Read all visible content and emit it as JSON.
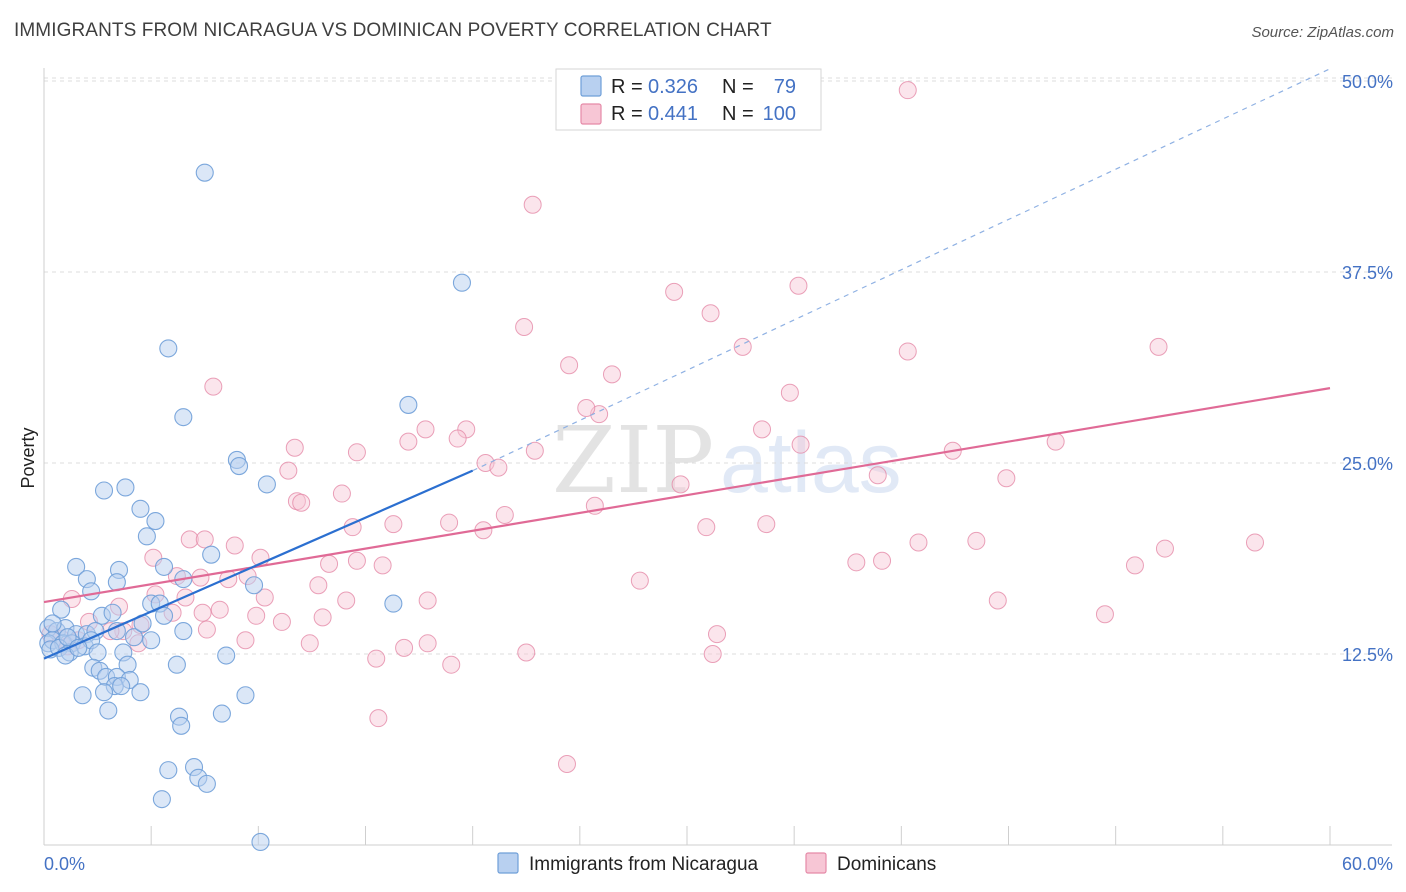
{
  "title": "IMMIGRANTS FROM NICARAGUA VS DOMINICAN POVERTY CORRELATION CHART",
  "source": "Source: ZipAtlas.com",
  "watermark": {
    "zip": "ZIP",
    "atlas": "atlas"
  },
  "colors": {
    "blue_fill": "#b8d0f0",
    "blue_stroke": "#6f9fd8",
    "blue_line": "#2b6fd0",
    "pink_fill": "#f7c6d5",
    "pink_stroke": "#e58aa8",
    "pink_line": "#e06a96",
    "tick_text": "#4472c4"
  },
  "legend_box": {
    "rows": [
      {
        "r_label": "R =",
        "r_value": "0.326",
        "n_label": "N =",
        "n_value": "79"
      },
      {
        "r_label": "R =",
        "r_value": "0.441",
        "n_label": "N =",
        "n_value": "100"
      }
    ]
  },
  "bottom_legend": [
    "Immigrants from Nicaragua",
    "Dominicans"
  ],
  "chart_data": {
    "type": "scatter",
    "title": "IMMIGRANTS FROM NICARAGUA VS DOMINICAN POVERTY CORRELATION CHART",
    "xlabel": "",
    "ylabel": "Poverty",
    "xlim": [
      0,
      60
    ],
    "ylim": [
      0,
      50
    ],
    "x_tick_labels": [
      "0.0%",
      "60.0%"
    ],
    "y_ticks": [
      12.5,
      25.0,
      37.5,
      50.0
    ],
    "y_tick_labels": [
      "12.5%",
      "25.0%",
      "37.5%",
      "50.0%"
    ],
    "grid": true,
    "legend_position": "top-center",
    "series": [
      {
        "name": "Immigrants from Nicaragua",
        "R": 0.326,
        "N": 79,
        "trend": {
          "x0": 0.0,
          "y0": 12.2,
          "x1": 20.0,
          "y1": 24.5,
          "dashed_to_x": 60.0,
          "dashed_to_y": 50.8
        },
        "points": [
          [
            7.5,
            44.0
          ],
          [
            19.5,
            36.8
          ],
          [
            5.8,
            32.5
          ],
          [
            6.5,
            28.0
          ],
          [
            17.0,
            28.8
          ],
          [
            9.0,
            25.2
          ],
          [
            9.1,
            24.8
          ],
          [
            10.4,
            23.6
          ],
          [
            2.8,
            23.2
          ],
          [
            3.8,
            23.4
          ],
          [
            4.5,
            22.0
          ],
          [
            5.2,
            21.2
          ],
          [
            4.8,
            20.2
          ],
          [
            7.8,
            19.0
          ],
          [
            1.5,
            18.2
          ],
          [
            3.5,
            18.0
          ],
          [
            5.6,
            18.2
          ],
          [
            2.0,
            17.4
          ],
          [
            3.4,
            17.2
          ],
          [
            6.5,
            17.4
          ],
          [
            9.8,
            17.0
          ],
          [
            2.2,
            16.6
          ],
          [
            5.0,
            15.8
          ],
          [
            5.4,
            15.8
          ],
          [
            16.3,
            15.8
          ],
          [
            0.8,
            15.4
          ],
          [
            2.7,
            15.0
          ],
          [
            3.2,
            15.2
          ],
          [
            5.6,
            15.0
          ],
          [
            0.2,
            14.2
          ],
          [
            0.6,
            14.0
          ],
          [
            1.0,
            14.2
          ],
          [
            1.5,
            13.8
          ],
          [
            2.0,
            13.8
          ],
          [
            2.4,
            14.0
          ],
          [
            3.4,
            14.0
          ],
          [
            6.5,
            14.0
          ],
          [
            0.2,
            13.2
          ],
          [
            0.4,
            13.4
          ],
          [
            0.9,
            13.2
          ],
          [
            1.3,
            13.2
          ],
          [
            1.9,
            13.0
          ],
          [
            2.2,
            13.4
          ],
          [
            4.2,
            13.6
          ],
          [
            5.0,
            13.4
          ],
          [
            0.3,
            12.8
          ],
          [
            0.7,
            12.9
          ],
          [
            1.2,
            12.6
          ],
          [
            1.0,
            12.4
          ],
          [
            2.5,
            12.6
          ],
          [
            3.7,
            12.6
          ],
          [
            8.5,
            12.4
          ],
          [
            6.2,
            11.8
          ],
          [
            2.3,
            11.6
          ],
          [
            2.6,
            11.4
          ],
          [
            3.9,
            11.8
          ],
          [
            2.9,
            11.0
          ],
          [
            3.4,
            11.0
          ],
          [
            4.0,
            10.8
          ],
          [
            3.3,
            10.4
          ],
          [
            3.6,
            10.4
          ],
          [
            1.8,
            9.8
          ],
          [
            2.8,
            10.0
          ],
          [
            4.5,
            10.0
          ],
          [
            9.4,
            9.8
          ],
          [
            3.0,
            8.8
          ],
          [
            6.3,
            8.4
          ],
          [
            8.3,
            8.6
          ],
          [
            6.4,
            7.8
          ],
          [
            5.8,
            4.9
          ],
          [
            7.0,
            5.1
          ],
          [
            7.2,
            4.4
          ],
          [
            7.6,
            4.0
          ],
          [
            5.5,
            3.0
          ],
          [
            10.1,
            0.2
          ],
          [
            0.4,
            14.5
          ],
          [
            1.1,
            13.6
          ],
          [
            1.6,
            12.9
          ],
          [
            4.6,
            14.5
          ]
        ]
      },
      {
        "name": "Dominicans",
        "R": 0.441,
        "N": 100,
        "trend": {
          "x0": 0.0,
          "y0": 15.9,
          "x1": 60.0,
          "y1": 29.9
        },
        "points": [
          [
            40.3,
            49.4
          ],
          [
            22.8,
            41.9
          ],
          [
            29.4,
            36.2
          ],
          [
            35.2,
            36.6
          ],
          [
            22.4,
            33.9
          ],
          [
            31.1,
            34.8
          ],
          [
            32.6,
            32.6
          ],
          [
            40.3,
            32.3
          ],
          [
            52.0,
            32.6
          ],
          [
            24.5,
            31.4
          ],
          [
            26.5,
            30.8
          ],
          [
            7.9,
            30.0
          ],
          [
            34.8,
            29.6
          ],
          [
            25.9,
            28.2
          ],
          [
            25.3,
            28.6
          ],
          [
            17.8,
            27.2
          ],
          [
            19.7,
            27.2
          ],
          [
            33.5,
            27.2
          ],
          [
            17.0,
            26.4
          ],
          [
            19.3,
            26.6
          ],
          [
            11.7,
            26.0
          ],
          [
            14.6,
            25.7
          ],
          [
            22.9,
            25.8
          ],
          [
            35.3,
            26.2
          ],
          [
            42.4,
            25.8
          ],
          [
            47.2,
            26.4
          ],
          [
            20.6,
            25.0
          ],
          [
            11.4,
            24.5
          ],
          [
            21.2,
            24.7
          ],
          [
            29.7,
            23.6
          ],
          [
            38.9,
            24.2
          ],
          [
            44.9,
            24.0
          ],
          [
            13.9,
            23.0
          ],
          [
            11.8,
            22.5
          ],
          [
            12.0,
            22.4
          ],
          [
            21.5,
            21.6
          ],
          [
            25.7,
            22.2
          ],
          [
            14.4,
            20.8
          ],
          [
            16.3,
            21.0
          ],
          [
            18.9,
            21.1
          ],
          [
            20.5,
            20.6
          ],
          [
            30.9,
            20.8
          ],
          [
            33.7,
            21.0
          ],
          [
            6.8,
            20.0
          ],
          [
            7.5,
            20.0
          ],
          [
            8.9,
            19.6
          ],
          [
            40.8,
            19.8
          ],
          [
            43.5,
            19.9
          ],
          [
            5.1,
            18.8
          ],
          [
            10.1,
            18.8
          ],
          [
            13.3,
            18.4
          ],
          [
            14.6,
            18.6
          ],
          [
            15.8,
            18.3
          ],
          [
            37.9,
            18.5
          ],
          [
            39.1,
            18.6
          ],
          [
            52.3,
            19.4
          ],
          [
            56.5,
            19.8
          ],
          [
            50.9,
            18.3
          ],
          [
            6.2,
            17.6
          ],
          [
            7.3,
            17.5
          ],
          [
            8.6,
            17.4
          ],
          [
            9.5,
            17.6
          ],
          [
            12.8,
            17.0
          ],
          [
            27.8,
            17.3
          ],
          [
            1.3,
            16.1
          ],
          [
            5.2,
            16.4
          ],
          [
            6.6,
            16.2
          ],
          [
            10.3,
            16.2
          ],
          [
            14.1,
            16.0
          ],
          [
            17.9,
            16.0
          ],
          [
            44.5,
            16.0
          ],
          [
            3.5,
            15.6
          ],
          [
            6.0,
            15.2
          ],
          [
            7.4,
            15.2
          ],
          [
            8.2,
            15.4
          ],
          [
            9.9,
            15.0
          ],
          [
            11.1,
            14.6
          ],
          [
            13.0,
            14.9
          ],
          [
            49.5,
            15.1
          ],
          [
            2.1,
            14.6
          ],
          [
            3.7,
            14.0
          ],
          [
            4.5,
            14.4
          ],
          [
            7.6,
            14.1
          ],
          [
            31.4,
            13.8
          ],
          [
            1.6,
            13.4
          ],
          [
            4.4,
            13.2
          ],
          [
            9.4,
            13.4
          ],
          [
            12.4,
            13.2
          ],
          [
            16.8,
            12.9
          ],
          [
            17.9,
            13.2
          ],
          [
            0.3,
            13.8
          ],
          [
            0.8,
            13.5
          ],
          [
            1.1,
            13.0
          ],
          [
            22.5,
            12.6
          ],
          [
            31.2,
            12.5
          ],
          [
            15.5,
            12.2
          ],
          [
            19.0,
            11.8
          ],
          [
            15.6,
            8.3
          ],
          [
            24.4,
            5.3
          ],
          [
            3.1,
            14.0
          ]
        ]
      }
    ]
  }
}
